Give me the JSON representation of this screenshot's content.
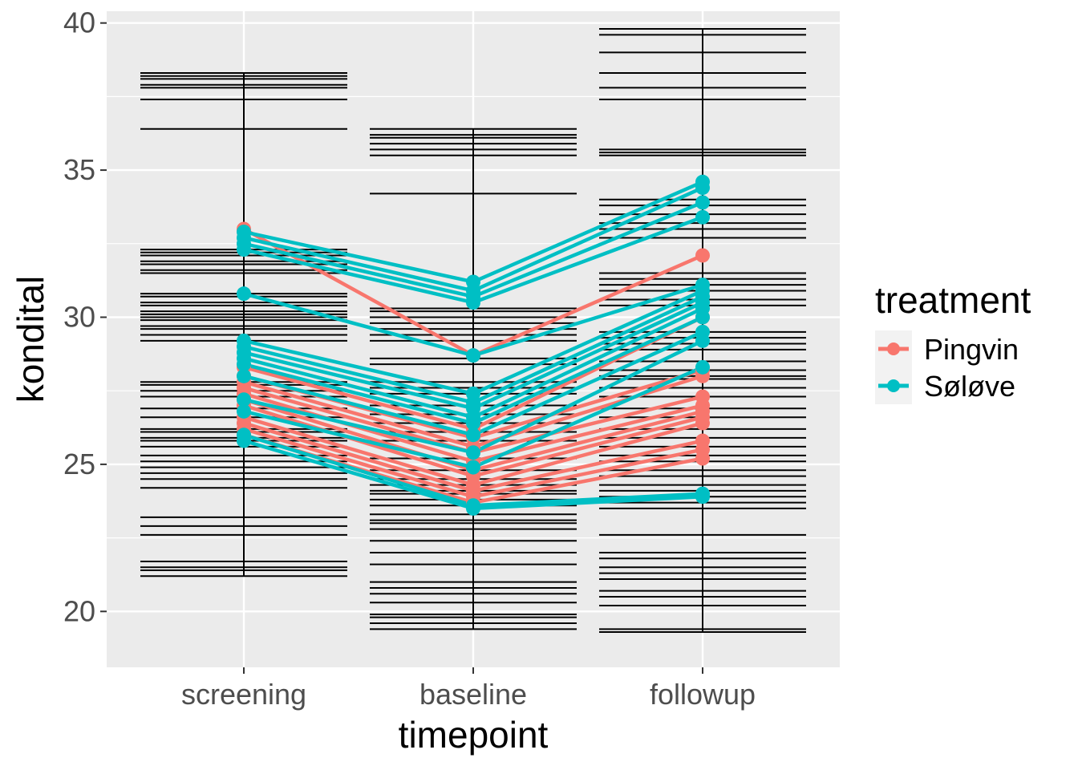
{
  "chart_data": {
    "type": "line",
    "xlabel": "timepoint",
    "ylabel": "kondital",
    "categories": [
      "screening",
      "baseline",
      "followup"
    ],
    "ylim": [
      18.1,
      40.4
    ],
    "yticks": [
      20,
      25,
      30,
      35,
      40
    ],
    "grid": true,
    "legend": {
      "title": "treatment",
      "position": "right",
      "entries": [
        {
          "name": "Pingvin",
          "color": "#F8766D"
        },
        {
          "name": "Søløve",
          "color": "#00BFC4"
        }
      ]
    },
    "series": [
      {
        "name": "Pingvin",
        "color": "#F8766D",
        "subjects": [
          [
            33.0,
            28.7,
            32.1
          ],
          [
            28.3,
            26.2,
            30.0
          ],
          [
            28.0,
            25.9,
            28.2
          ],
          [
            27.8,
            25.6,
            28.0
          ],
          [
            27.6,
            25.4,
            27.3
          ],
          [
            27.4,
            25.1,
            27.0
          ],
          [
            27.2,
            24.8,
            26.8
          ],
          [
            27.0,
            24.6,
            26.6
          ],
          [
            26.6,
            24.3,
            26.4
          ],
          [
            26.4,
            24.1,
            25.8
          ],
          [
            26.2,
            23.9,
            25.5
          ],
          [
            26.0,
            23.7,
            25.2
          ]
        ]
      },
      {
        "name": "Søløve",
        "color": "#00BFC4",
        "subjects": [
          [
            32.9,
            31.2,
            34.6
          ],
          [
            32.7,
            30.9,
            34.4
          ],
          [
            32.5,
            30.7,
            33.9
          ],
          [
            32.3,
            30.5,
            33.4
          ],
          [
            30.8,
            28.7,
            31.1
          ],
          [
            29.2,
            27.4,
            30.9
          ],
          [
            29.0,
            27.1,
            30.7
          ],
          [
            28.8,
            26.9,
            30.5
          ],
          [
            28.6,
            26.6,
            30.3
          ],
          [
            28.4,
            26.4,
            30.0
          ],
          [
            28.0,
            26.0,
            29.5
          ],
          [
            27.2,
            25.4,
            29.2
          ],
          [
            26.8,
            24.9,
            28.3
          ],
          [
            26.0,
            23.6,
            24.0
          ],
          [
            25.8,
            23.5,
            23.9
          ]
        ]
      }
    ],
    "band_lines": [
      {
        "category": "screening",
        "values": [
          38.3,
          38.2,
          38.1,
          37.9,
          37.8,
          37.4,
          36.4,
          32.3,
          32.2,
          32.1,
          31.9,
          31.8,
          31.6,
          31.5,
          30.8,
          30.7,
          30.5,
          30.4,
          30.2,
          30.1,
          30.0,
          29.9,
          29.7,
          29.6,
          29.4,
          29.2,
          27.8,
          27.7,
          27.5,
          27.3,
          26.9,
          26.6,
          26.2,
          26.1,
          25.9,
          25.8,
          25.6,
          25.3,
          25.1,
          24.9,
          24.7,
          24.5,
          24.2,
          23.2,
          22.9,
          22.6,
          21.7,
          21.5,
          21.4,
          21.2
        ]
      },
      {
        "category": "baseline",
        "values": [
          36.4,
          36.2,
          36.1,
          35.9,
          35.7,
          35.5,
          34.2,
          30.3,
          30.2,
          30.0,
          29.8,
          29.6,
          29.4,
          29.2,
          28.6,
          28.4,
          27.8,
          27.6,
          27.4,
          27.0,
          26.7,
          26.4,
          26.1,
          25.8,
          25.2,
          24.8,
          24.5,
          24.3,
          24.1,
          24.0,
          23.8,
          23.6,
          23.3,
          23.1,
          23.0,
          22.8,
          22.4,
          22.0,
          21.6,
          21.0,
          20.8,
          20.6,
          20.3,
          19.9,
          19.8,
          19.6,
          19.4
        ]
      },
      {
        "category": "followup",
        "values": [
          39.8,
          39.6,
          39.0,
          38.3,
          37.8,
          37.4,
          35.7,
          35.6,
          35.5,
          34.0,
          33.8,
          33.5,
          33.2,
          33.0,
          32.7,
          31.5,
          31.3,
          31.1,
          30.9,
          30.6,
          30.4,
          29.5,
          29.3,
          29.1,
          28.9,
          28.5,
          28.2,
          28.0,
          27.9,
          27.6,
          27.3,
          26.9,
          26.6,
          26.2,
          25.9,
          25.6,
          25.3,
          25.1,
          24.8,
          24.6,
          24.3,
          24.1,
          23.9,
          23.7,
          23.5,
          22.6,
          22.0,
          21.8,
          21.5,
          21.3,
          21.1,
          20.7,
          20.5,
          20.2,
          19.4,
          19.3
        ]
      }
    ]
  }
}
